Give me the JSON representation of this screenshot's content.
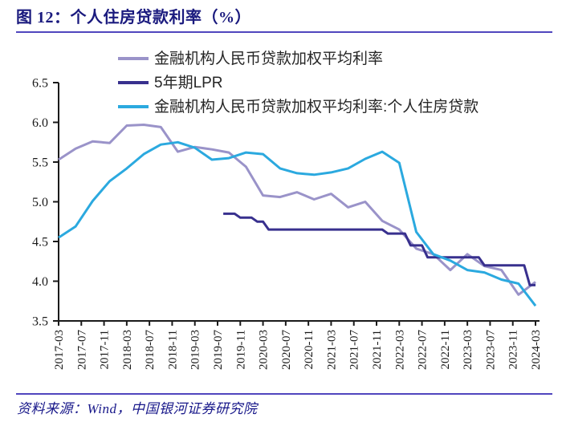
{
  "figure": {
    "title": "图 12：个人住房贷款利率（%）",
    "source": "资料来源：Wind，中国银河证券研究院"
  },
  "colors": {
    "title_text": "#1A1A7E",
    "source_text": "#18188A",
    "divider_rule": "#5046BE",
    "axis": "#1A1A1A",
    "legend_text": "#262626"
  },
  "chart_data": {
    "type": "line",
    "title": "图 12：个人住房贷款利率（%）",
    "xlabel": "",
    "ylabel": "",
    "ylim": [
      3.5,
      6.5
    ],
    "y_ticks": [
      "6.5",
      "6.0",
      "5.5",
      "5.0",
      "4.5",
      "4.0",
      "3.5"
    ],
    "x_start": "2017-03",
    "x_end": "2024-03",
    "x_unit": "month",
    "x_tick_month_step": 4,
    "x_tick_labels": [
      "2017-03",
      "2017-07",
      "2017-11",
      "2018-03",
      "2018-07",
      "2018-11",
      "2019-03",
      "2019-07",
      "2019-11",
      "2020-03",
      "2020-07",
      "2020-11",
      "2021-03",
      "2021-07",
      "2021-11",
      "2022-03",
      "2022-07",
      "2022-11",
      "2023-03",
      "2023-07",
      "2023-11",
      "2024-03"
    ],
    "grid": false,
    "legend_position": "top-left",
    "series": [
      {
        "name": "金融机构人民币贷款加权平均利率",
        "color": "#9A93C9",
        "start_month": "2017-03",
        "month_step": 3,
        "values": [
          5.53,
          5.67,
          5.76,
          5.74,
          5.96,
          5.97,
          5.94,
          5.63,
          5.69,
          5.66,
          5.62,
          5.44,
          5.08,
          5.06,
          5.12,
          5.03,
          5.1,
          4.93,
          5.0,
          4.76,
          4.65,
          4.41,
          4.34,
          4.14,
          4.34,
          4.19,
          4.14,
          3.83,
          3.99
        ]
      },
      {
        "name": "5年期LPR",
        "color": "#38308E",
        "start_month": "2019-08",
        "month_step": 1,
        "values": [
          4.85,
          4.85,
          4.85,
          4.8,
          4.8,
          4.8,
          4.75,
          4.75,
          4.65,
          4.65,
          4.65,
          4.65,
          4.65,
          4.65,
          4.65,
          4.65,
          4.65,
          4.65,
          4.65,
          4.65,
          4.65,
          4.65,
          4.65,
          4.65,
          4.65,
          4.65,
          4.65,
          4.65,
          4.65,
          4.6,
          4.6,
          4.6,
          4.6,
          4.45,
          4.45,
          4.45,
          4.3,
          4.3,
          4.3,
          4.3,
          4.3,
          4.3,
          4.3,
          4.3,
          4.3,
          4.3,
          4.2,
          4.2,
          4.2,
          4.2,
          4.2,
          4.2,
          4.2,
          4.2,
          3.95,
          3.95
        ]
      },
      {
        "name": "金融机构人民币贷款加权平均利率:个人住房贷款",
        "color": "#2BA9DF",
        "start_month": "2017-03",
        "month_step": 3,
        "values": [
          4.55,
          4.69,
          5.01,
          5.26,
          5.42,
          5.6,
          5.72,
          5.75,
          5.68,
          5.53,
          5.55,
          5.62,
          5.6,
          5.42,
          5.36,
          5.34,
          5.37,
          5.42,
          5.54,
          5.63,
          5.49,
          4.62,
          4.34,
          4.26,
          4.14,
          4.11,
          4.02,
          3.97,
          3.69
        ]
      }
    ]
  }
}
